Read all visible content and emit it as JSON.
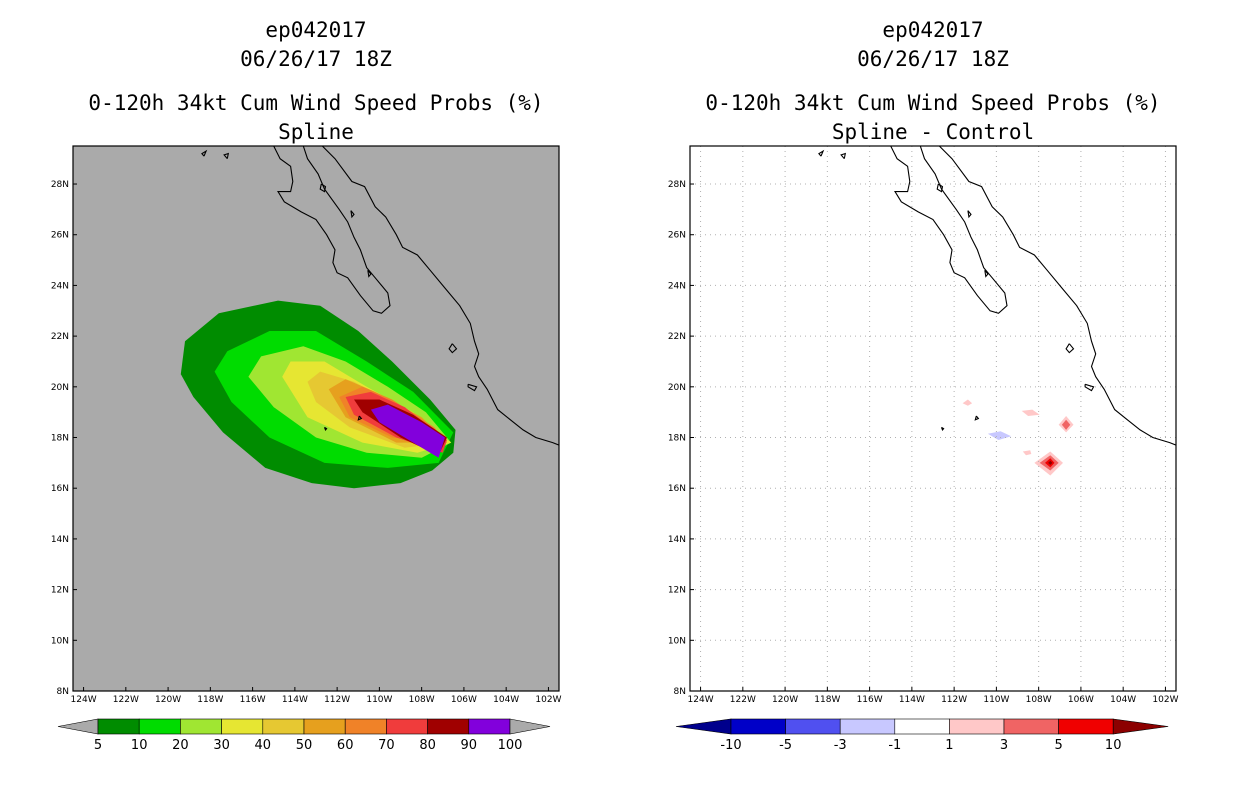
{
  "left": {
    "title_line1": "ep042017",
    "title_line2": "06/26/17 18Z",
    "title_line3": "0-120h 34kt Cum Wind Speed Probs (%)",
    "title_line4": "Spline",
    "background_color": "#aaaaaa",
    "colorbar": {
      "colors": [
        "#008c00",
        "#00dc00",
        "#a0e632",
        "#e6e632",
        "#e6c832",
        "#e6a01e",
        "#f08228",
        "#f03c3c",
        "#a00000",
        "#8200dc"
      ],
      "labels": [
        "5",
        "10",
        "20",
        "30",
        "40",
        "50",
        "60",
        "70",
        "80",
        "90",
        "100"
      ],
      "under_color": "#aaaaaa",
      "over_color": "#aaaaaa"
    }
  },
  "right": {
    "title_line1": "ep042017",
    "title_line2": "06/26/17 18Z",
    "title_line3": "0-120h 34kt Cum Wind Speed Probs (%)",
    "title_line4": "Spline - Control",
    "background_color": "#ffffff",
    "colorbar": {
      "colors": [
        "#0000c8",
        "#5050f0",
        "#c8c8ff",
        "#ffffff",
        "#ffc8c8",
        "#f06464",
        "#f00000"
      ],
      "labels": [
        "-10",
        "-5",
        "-3",
        "-1",
        "1",
        "3",
        "5",
        "10"
      ],
      "under_color": "#00008c",
      "over_color": "#8c0000"
    }
  },
  "axes": {
    "lon_labels": [
      "124W",
      "122W",
      "120W",
      "118W",
      "116W",
      "114W",
      "112W",
      "110W",
      "108W",
      "106W",
      "104W",
      "102W"
    ],
    "lat_labels": [
      "28N",
      "26N",
      "24N",
      "22N",
      "20N",
      "18N",
      "16N",
      "14N",
      "12N",
      "10N",
      "8N"
    ],
    "lon_range": [
      -124.5,
      -101.5
    ],
    "lat_range": [
      8,
      29.5
    ]
  },
  "map_data": {
    "prob_regions": [
      {
        "value": 5,
        "polygon": [
          [
            -119.4,
            20.5
          ],
          [
            -119.2,
            21.8
          ],
          [
            -117.6,
            22.9
          ],
          [
            -114.8,
            23.4
          ],
          [
            -112.8,
            23.2
          ],
          [
            -111.0,
            22.2
          ],
          [
            -109.4,
            21.0
          ],
          [
            -107.6,
            19.5
          ],
          [
            -106.4,
            18.3
          ],
          [
            -106.5,
            17.4
          ],
          [
            -107.5,
            16.7
          ],
          [
            -109.0,
            16.2
          ],
          [
            -111.2,
            16.0
          ],
          [
            -113.2,
            16.2
          ],
          [
            -115.4,
            16.8
          ],
          [
            -117.4,
            18.2
          ],
          [
            -118.8,
            19.6
          ]
        ]
      },
      {
        "value": 10,
        "polygon": [
          [
            -117.8,
            20.6
          ],
          [
            -117.2,
            21.4
          ],
          [
            -115.2,
            22.2
          ],
          [
            -113.0,
            22.2
          ],
          [
            -110.6,
            21.0
          ],
          [
            -108.4,
            19.8
          ],
          [
            -106.5,
            18.2
          ],
          [
            -107.2,
            17.0
          ],
          [
            -109.6,
            16.8
          ],
          [
            -112.6,
            17.0
          ],
          [
            -115.2,
            18.0
          ],
          [
            -117.0,
            19.4
          ]
        ]
      },
      {
        "value": 20,
        "polygon": [
          [
            -116.2,
            20.4
          ],
          [
            -115.6,
            21.2
          ],
          [
            -113.6,
            21.6
          ],
          [
            -111.6,
            21.0
          ],
          [
            -109.6,
            20.0
          ],
          [
            -107.8,
            19.0
          ],
          [
            -106.6,
            17.8
          ],
          [
            -108.0,
            17.2
          ],
          [
            -110.6,
            17.4
          ],
          [
            -113.0,
            18.0
          ],
          [
            -115.0,
            19.2
          ]
        ]
      },
      {
        "value": 30,
        "polygon": [
          [
            -114.6,
            20.4
          ],
          [
            -114.2,
            21.0
          ],
          [
            -112.6,
            21.0
          ],
          [
            -110.6,
            20.0
          ],
          [
            -108.4,
            19.0
          ],
          [
            -106.6,
            17.8
          ],
          [
            -108.2,
            17.4
          ],
          [
            -110.8,
            17.8
          ],
          [
            -113.4,
            18.8
          ]
        ]
      },
      {
        "value": 40,
        "polygon": [
          [
            -113.4,
            20.2
          ],
          [
            -112.8,
            20.6
          ],
          [
            -111.2,
            20.2
          ],
          [
            -109.0,
            19.2
          ],
          [
            -106.8,
            17.8
          ],
          [
            -108.8,
            17.6
          ],
          [
            -111.4,
            18.4
          ],
          [
            -113.0,
            19.4
          ]
        ]
      },
      {
        "value": 50,
        "polygon": [
          [
            -112.4,
            19.9
          ],
          [
            -111.6,
            20.3
          ],
          [
            -110.2,
            19.8
          ],
          [
            -108.0,
            18.8
          ],
          [
            -106.8,
            17.8
          ],
          [
            -109.2,
            17.8
          ],
          [
            -111.6,
            18.8
          ]
        ]
      },
      {
        "value": 60,
        "polygon": [
          [
            -111.9,
            19.6
          ],
          [
            -110.8,
            20.0
          ],
          [
            -109.4,
            19.5
          ],
          [
            -107.4,
            18.4
          ],
          [
            -106.8,
            17.8
          ],
          [
            -109.4,
            18.0
          ],
          [
            -111.4,
            18.8
          ]
        ]
      },
      {
        "value": 70,
        "polygon": [
          [
            -111.6,
            19.6
          ],
          [
            -110.4,
            19.8
          ],
          [
            -108.8,
            19.2
          ],
          [
            -106.8,
            17.9
          ],
          [
            -107.0,
            17.4
          ],
          [
            -109.2,
            18.0
          ],
          [
            -111.2,
            18.9
          ]
        ]
      },
      {
        "value": 80,
        "polygon": [
          [
            -111.2,
            19.5
          ],
          [
            -110.0,
            19.5
          ],
          [
            -108.4,
            18.9
          ],
          [
            -106.8,
            18.0
          ],
          [
            -107.2,
            17.3
          ],
          [
            -109.0,
            18.0
          ],
          [
            -110.8,
            19.0
          ]
        ]
      },
      {
        "value": 90,
        "polygon": [
          [
            -110.4,
            19.1
          ],
          [
            -109.6,
            19.3
          ],
          [
            -108.0,
            18.6
          ],
          [
            -106.9,
            18.0
          ],
          [
            -107.2,
            17.2
          ],
          [
            -108.4,
            17.8
          ],
          [
            -110.0,
            18.6
          ]
        ]
      }
    ],
    "diff_regions": [
      {
        "value": 1,
        "polygon": [
          [
            -110.4,
            18.15
          ],
          [
            -109.8,
            18.25
          ],
          [
            -109.3,
            18.05
          ],
          [
            -109.9,
            17.9
          ]
        ],
        "sign": "negative"
      },
      {
        "value": 1,
        "polygon": [
          [
            -111.6,
            19.35
          ],
          [
            -111.35,
            19.5
          ],
          [
            -111.15,
            19.35
          ],
          [
            -111.35,
            19.25
          ]
        ],
        "sign": "positive"
      },
      {
        "value": 1,
        "polygon": [
          [
            -108.8,
            19.05
          ],
          [
            -108.3,
            19.1
          ],
          [
            -107.95,
            18.9
          ],
          [
            -108.5,
            18.85
          ]
        ],
        "sign": "positive"
      },
      {
        "value": 1,
        "polygon": [
          [
            -108.75,
            17.45
          ],
          [
            -108.4,
            17.5
          ],
          [
            -108.35,
            17.35
          ],
          [
            -108.6,
            17.3
          ]
        ],
        "sign": "positive"
      },
      {
        "value": 1,
        "polygon": [
          [
            -107.05,
            18.5
          ],
          [
            -106.7,
            18.85
          ],
          [
            -106.35,
            18.5
          ],
          [
            -106.7,
            18.2
          ]
        ],
        "sign": "positive"
      },
      {
        "value": 3,
        "polygon": [
          [
            -106.9,
            18.5
          ],
          [
            -106.7,
            18.7
          ],
          [
            -106.5,
            18.5
          ],
          [
            -106.7,
            18.3
          ]
        ],
        "sign": "positive"
      },
      {
        "value": 1,
        "polygon": [
          [
            -108.2,
            17.0
          ],
          [
            -107.45,
            17.45
          ],
          [
            -106.85,
            17.0
          ],
          [
            -107.45,
            16.5
          ]
        ],
        "sign": "positive"
      },
      {
        "value": 3,
        "polygon": [
          [
            -107.95,
            17.0
          ],
          [
            -107.45,
            17.3
          ],
          [
            -107.05,
            17.0
          ],
          [
            -107.45,
            16.7
          ]
        ],
        "sign": "positive"
      },
      {
        "value": 5,
        "polygon": [
          [
            -107.7,
            17.0
          ],
          [
            -107.45,
            17.18
          ],
          [
            -107.25,
            17.0
          ],
          [
            -107.45,
            16.82
          ]
        ],
        "sign": "positive"
      },
      {
        "value": 10,
        "polygon": [
          [
            -107.55,
            17.0
          ],
          [
            -107.45,
            17.08
          ],
          [
            -107.35,
            17.0
          ],
          [
            -107.45,
            16.92
          ]
        ],
        "sign": "positive"
      }
    ],
    "coastlines": [
      [
        [
          -115.0,
          29.5
        ],
        [
          -114.7,
          29.0
        ],
        [
          -114.2,
          28.7
        ],
        [
          -114.1,
          28.1
        ],
        [
          -114.2,
          27.7
        ],
        [
          -114.8,
          27.7
        ],
        [
          -114.5,
          27.3
        ],
        [
          -113.7,
          26.9
        ],
        [
          -113.0,
          26.6
        ],
        [
          -112.5,
          26.0
        ],
        [
          -112.1,
          25.4
        ],
        [
          -112.2,
          24.9
        ],
        [
          -112.0,
          24.5
        ],
        [
          -111.5,
          24.3
        ],
        [
          -110.9,
          23.6
        ],
        [
          -110.3,
          23.0
        ],
        [
          -109.9,
          22.9
        ],
        [
          -109.5,
          23.2
        ],
        [
          -109.6,
          23.7
        ],
        [
          -110.2,
          24.3
        ],
        [
          -110.6,
          24.7
        ],
        [
          -110.9,
          25.4
        ],
        [
          -111.2,
          25.9
        ],
        [
          -111.5,
          26.5
        ],
        [
          -111.9,
          27.0
        ],
        [
          -112.6,
          27.8
        ],
        [
          -112.9,
          28.4
        ],
        [
          -113.4,
          29.0
        ],
        [
          -113.6,
          29.5
        ]
      ],
      [
        [
          -112.7,
          29.5
        ],
        [
          -112.1,
          29.0
        ],
        [
          -111.3,
          28.1
        ],
        [
          -110.7,
          27.9
        ],
        [
          -110.2,
          27.1
        ],
        [
          -109.7,
          26.7
        ],
        [
          -109.2,
          26.0
        ],
        [
          -108.9,
          25.5
        ],
        [
          -108.2,
          25.2
        ],
        [
          -107.6,
          24.6
        ],
        [
          -106.9,
          23.9
        ],
        [
          -106.2,
          23.2
        ],
        [
          -105.7,
          22.5
        ],
        [
          -105.5,
          21.8
        ],
        [
          -105.3,
          21.3
        ],
        [
          -105.5,
          20.8
        ],
        [
          -105.3,
          20.4
        ],
        [
          -104.9,
          19.9
        ],
        [
          -104.4,
          19.1
        ],
        [
          -103.8,
          18.7
        ],
        [
          -103.2,
          18.3
        ],
        [
          -102.6,
          18.0
        ],
        [
          -101.8,
          17.8
        ],
        [
          -101.5,
          17.7
        ]
      ],
      [
        [
          -117.2,
          29.0
        ],
        [
          -117.15,
          29.2
        ],
        [
          -117.35,
          29.15
        ],
        [
          -117.2,
          29.0
        ]
      ],
      [
        [
          -118.3,
          29.1
        ],
        [
          -118.2,
          29.3
        ],
        [
          -118.4,
          29.2
        ],
        [
          -118.3,
          29.1
        ]
      ],
      [
        [
          -112.75,
          28.0
        ],
        [
          -112.55,
          27.9
        ],
        [
          -112.6,
          27.7
        ],
        [
          -112.8,
          27.8
        ],
        [
          -112.75,
          28.0
        ]
      ],
      [
        [
          -111.35,
          26.95
        ],
        [
          -111.2,
          26.8
        ],
        [
          -111.3,
          26.7
        ],
        [
          -111.35,
          26.95
        ]
      ],
      [
        [
          -110.55,
          24.6
        ],
        [
          -110.4,
          24.45
        ],
        [
          -110.5,
          24.35
        ],
        [
          -110.55,
          24.6
        ]
      ],
      [
        [
          -106.55,
          21.7
        ],
        [
          -106.35,
          21.5
        ],
        [
          -106.55,
          21.35
        ],
        [
          -106.7,
          21.5
        ],
        [
          -106.55,
          21.7
        ]
      ],
      [
        [
          -105.8,
          20.1
        ],
        [
          -105.4,
          20.0
        ],
        [
          -105.5,
          19.85
        ],
        [
          -105.8,
          20.0
        ],
        [
          -105.8,
          20.1
        ]
      ],
      [
        [
          -110.95,
          18.85
        ],
        [
          -110.85,
          18.75
        ],
        [
          -111.0,
          18.7
        ],
        [
          -110.95,
          18.85
        ]
      ],
      [
        [
          -112.6,
          18.4
        ],
        [
          -112.5,
          18.35
        ],
        [
          -112.55,
          18.3
        ],
        [
          -112.6,
          18.4
        ]
      ]
    ]
  }
}
